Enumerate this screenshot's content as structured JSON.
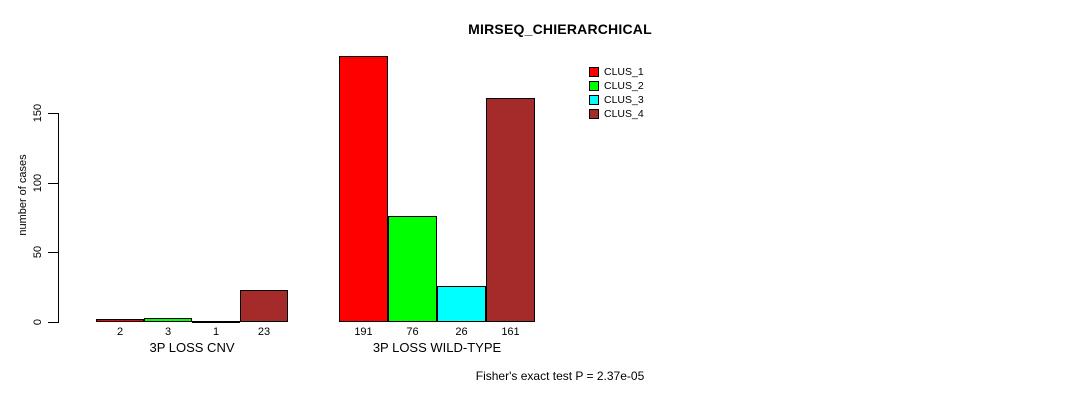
{
  "chart_data": {
    "type": "bar",
    "title": "MIRSEQ_CHIERARCHICAL",
    "ylabel": "number of cases",
    "xlabel": "",
    "yticks": [
      0,
      50,
      100,
      150
    ],
    "ylim": [
      0,
      150
    ],
    "grid": false,
    "legend_position": "top-right",
    "categories": [
      "3P LOSS CNV",
      "3P LOSS WILD-TYPE"
    ],
    "series": [
      {
        "name": "CLUS_1",
        "color": "#ff0000",
        "values": [
          2,
          191
        ]
      },
      {
        "name": "CLUS_2",
        "color": "#00ff00",
        "values": [
          3,
          76
        ]
      },
      {
        "name": "CLUS_3",
        "color": "#00ffff",
        "values": [
          1,
          26
        ]
      },
      {
        "name": "CLUS_4",
        "color": "#a52a2a",
        "values": [
          23,
          161
        ]
      }
    ],
    "footer": "Fisher's exact test P = 2.37e-05"
  }
}
